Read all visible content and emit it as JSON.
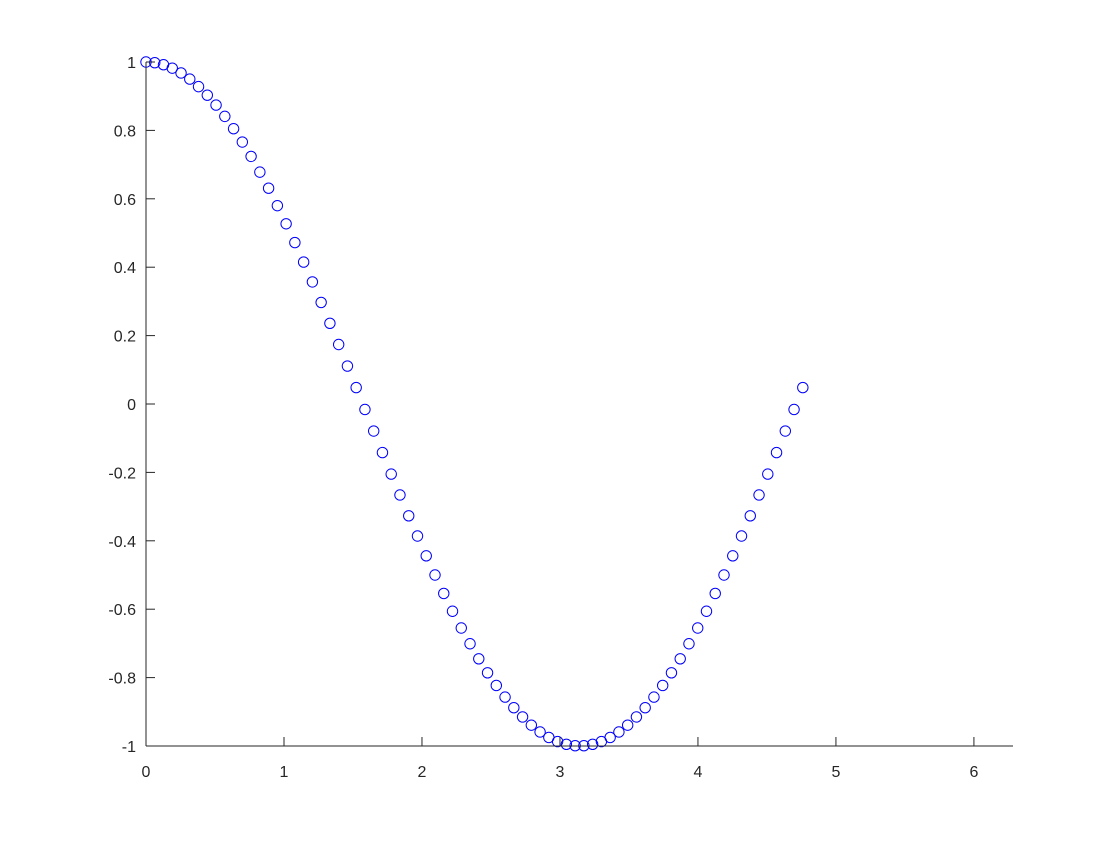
{
  "figure": {
    "background": "#ffffff"
  },
  "chart_data": {
    "type": "scatter",
    "marker": "circle",
    "marker_color": "#0000ff",
    "axis_color": "#262626",
    "x_range": [
      0,
      6.2832
    ],
    "y_range": [
      -1,
      1
    ],
    "x_ticks": [
      0,
      1,
      2,
      3,
      4,
      5,
      6
    ],
    "x_tick_labels": [
      "0",
      "1",
      "2",
      "3",
      "4",
      "5",
      "6"
    ],
    "y_ticks": [
      -1,
      -0.8,
      -0.6,
      -0.4,
      -0.2,
      0,
      0.2,
      0.4,
      0.6,
      0.8,
      1
    ],
    "y_tick_labels": [
      "-1",
      "-0.8",
      "-0.6",
      "-0.4",
      "-0.2",
      "0",
      "0.2",
      "0.4",
      "0.6",
      "0.8",
      "1"
    ],
    "grid": false,
    "box": false,
    "series": [
      {
        "x": [
          0,
          0.0635,
          0.1269,
          0.1904,
          0.2539,
          0.3173,
          0.3808,
          0.4443,
          0.5077,
          0.5712,
          0.6347,
          0.6981,
          0.7616,
          0.8251,
          0.8885,
          0.952,
          1.0155,
          1.0789,
          1.1424,
          1.2059,
          1.2693,
          1.3328,
          1.3963,
          1.4597,
          1.5232,
          1.5867,
          1.6501,
          1.7136,
          1.7771,
          1.8405,
          1.904,
          1.9675,
          2.0309,
          2.0944,
          2.1579,
          2.2213,
          2.2848,
          2.3483,
          2.4117,
          2.4752,
          2.5387,
          2.6021,
          2.6656,
          2.7291,
          2.7925,
          2.856,
          2.9195,
          2.9829,
          3.0464,
          3.1099,
          3.1733,
          3.2368,
          3.3003,
          3.3637,
          3.4272,
          3.4907,
          3.5541,
          3.6176,
          3.6811,
          3.7445,
          3.808,
          3.8715,
          3.9349,
          3.9984,
          4.0619,
          4.1253,
          4.1888,
          4.2523,
          4.3157,
          4.3792,
          4.4427,
          4.5061,
          4.5696,
          4.6331,
          4.6965,
          4.76
        ],
        "y": [
          1,
          0.998,
          0.992,
          0.982,
          0.968,
          0.95,
          0.928,
          0.903,
          0.874,
          0.841,
          0.805,
          0.766,
          0.724,
          0.678,
          0.631,
          0.58,
          0.527,
          0.472,
          0.415,
          0.357,
          0.297,
          0.236,
          0.174,
          0.111,
          0.048,
          -0.016,
          -0.079,
          -0.142,
          -0.205,
          -0.266,
          -0.327,
          -0.386,
          -0.444,
          -0.5,
          -0.554,
          -0.606,
          -0.655,
          -0.701,
          -0.745,
          -0.786,
          -0.823,
          -0.857,
          -0.888,
          -0.915,
          -0.939,
          -0.959,
          -0.975,
          -0.987,
          -0.995,
          -0.999,
          -0.999,
          -0.995,
          -0.987,
          -0.975,
          -0.959,
          -0.939,
          -0.915,
          -0.888,
          -0.857,
          -0.823,
          -0.786,
          -0.745,
          -0.701,
          -0.655,
          -0.606,
          -0.554,
          -0.5,
          -0.444,
          -0.386,
          -0.327,
          -0.266,
          -0.205,
          -0.142,
          -0.079,
          -0.016,
          0.048
        ]
      }
    ]
  }
}
